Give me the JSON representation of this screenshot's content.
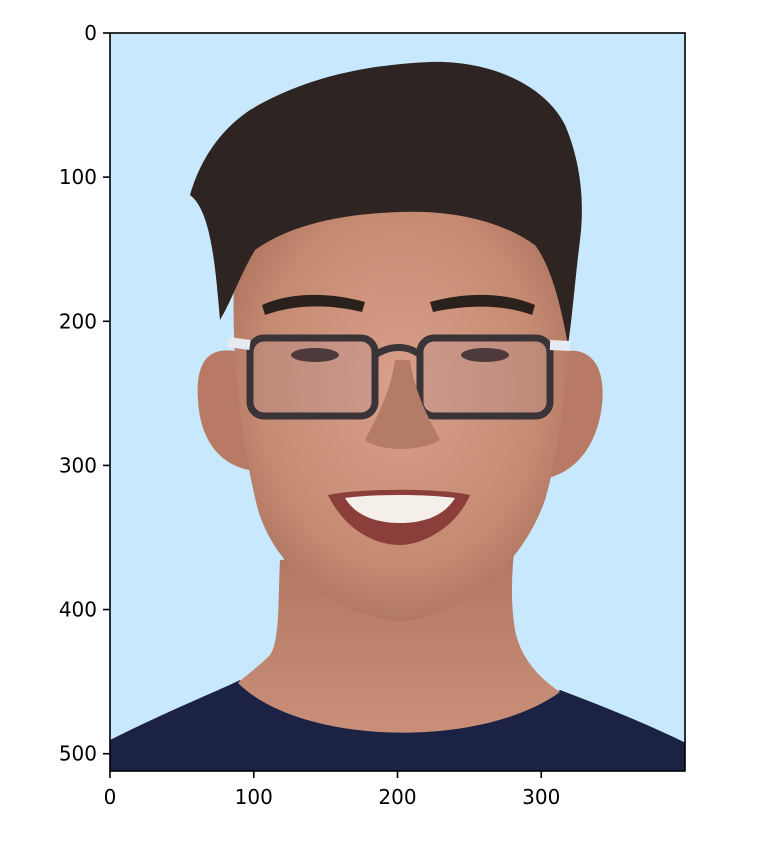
{
  "image": {
    "subject": "portrait photo",
    "background_color": "#c8e9fd",
    "shirt_color": "#1b2243",
    "skin_color": "#c58a72",
    "hair_color": "#2e2421"
  },
  "chart_data": {
    "type": "image",
    "xlim": [
      0,
      400
    ],
    "ylim": [
      512,
      0
    ],
    "x_ticks": [
      0,
      100,
      200,
      300
    ],
    "y_ticks": [
      0,
      100,
      200,
      300,
      400,
      500
    ],
    "x_tick_labels": [
      "0",
      "100",
      "200",
      "300"
    ],
    "y_tick_labels": [
      "0",
      "100",
      "200",
      "300",
      "400",
      "500"
    ],
    "grid": false
  }
}
